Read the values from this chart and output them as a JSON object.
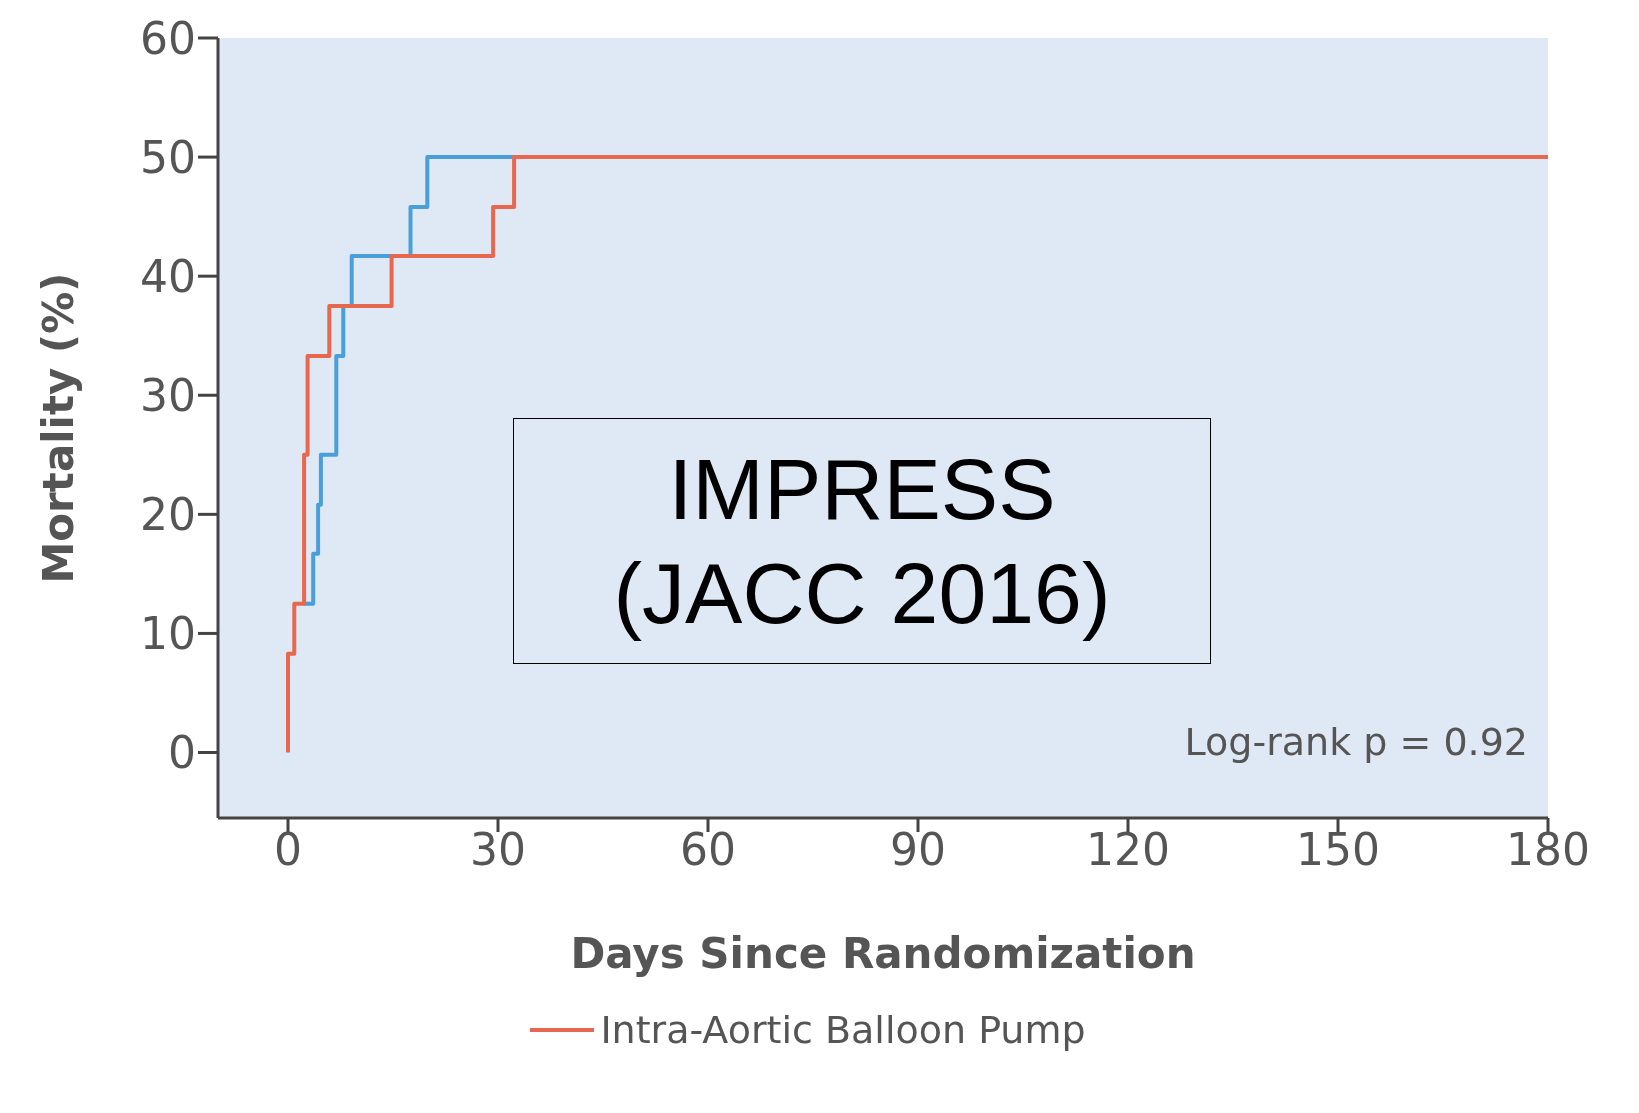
{
  "chart_data": {
    "type": "step",
    "xlabel": "Days Since Randomization",
    "ylabel": "Mortality (%)",
    "annotations": [
      "IMPRESS\n(JACC 2016)",
      "Log-rank p = 0.92"
    ],
    "series": [
      {
        "color": "#4a9fd8",
        "x": [
          2.3,
          3.6,
          4.3,
          4.7,
          6.9,
          7.9,
          9.1,
          17.5,
          19.9,
          32.3
        ],
        "values": [
          12.5,
          16.7,
          20.8,
          25,
          33.3,
          37.5,
          41.7,
          45.8,
          50,
          50
        ]
      },
      {
        "name": "Intra-Aortic Balloon Pump",
        "color": "#e8674f",
        "x": [
          0,
          0,
          0.9,
          2.3,
          2.8,
          5.9,
          14.8,
          29.3,
          32.3,
          180
        ],
        "values": [
          0,
          8.3,
          12.5,
          25,
          33.3,
          37.5,
          41.7,
          45.8,
          50,
          50
        ]
      }
    ],
    "xlim": [
      -10,
      180
    ],
    "ylim": [
      -5.5,
      60
    ],
    "xticks": [
      0,
      30,
      60,
      90,
      120,
      150,
      180
    ],
    "yticks": [
      0,
      10,
      20,
      30,
      40,
      50,
      60
    ],
    "grid": false,
    "legend": "bottom",
    "marker": "none",
    "line_style": "solid"
  }
}
